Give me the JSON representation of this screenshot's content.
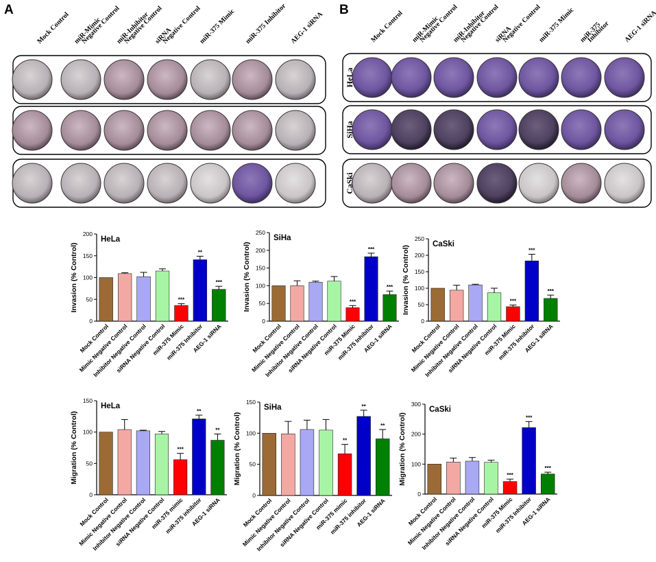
{
  "panel_a": {
    "letter": "A",
    "columns": [
      "Mock Control",
      "miR-Mimic Negative Control",
      "miR-Inhibitor Negative Control",
      "siRNA Negative Control",
      "miR-375 Mimic",
      "miR-375 Inhibitor",
      "AEG-1 siRNA"
    ],
    "rows": [
      "HeLa",
      "SiHa",
      "CaSki"
    ]
  },
  "panel_b": {
    "letter": "B",
    "columns": [
      "Mock Control",
      "miR-Mimic Negative Control",
      "miR-Inhibitor Negative Control",
      "siRNA Negative Control",
      "miR-375 Mimic",
      "miR-375 Inhibitor",
      "AEG-1 siRNA"
    ],
    "rows": [
      "HeLa",
      "SiHa",
      "CaSki"
    ]
  },
  "colors": [
    "#9c6b35",
    "#f4a8a4",
    "#a8a8f5",
    "#a7f5a4",
    "#ff0000",
    "#0000c8",
    "#008000"
  ],
  "chart_data": [
    {
      "type": "bar",
      "title": "HeLa",
      "ylabel": "Invasion (% Control)",
      "ylim": [
        0,
        200
      ],
      "yticks": [
        0,
        50,
        100,
        150,
        200
      ],
      "categories": [
        "Mock Control",
        "Mimic Negative Control",
        "Inhibitor Negative Control",
        "siRNA Negative Control",
        "miR-375 Mimic",
        "miR-375 Inhibitor",
        "AEG-1 siRNA"
      ],
      "values": [
        100,
        109,
        102,
        115,
        36,
        141,
        73
      ],
      "errors": [
        0,
        2,
        10,
        5,
        4,
        8,
        7
      ],
      "significance": [
        "",
        "",
        "",
        "",
        "***",
        "**",
        "***"
      ]
    },
    {
      "type": "bar",
      "title": "SiHa",
      "ylabel": "Invasion (% Control)",
      "ylim": [
        0,
        250
      ],
      "yticks": [
        0,
        50,
        100,
        150,
        200,
        250
      ],
      "categories": [
        "Mock Control",
        "Mimic Negative Control",
        "Inhibitor Negative Control",
        "siRNA Negative Control",
        "miR-375 Mimic",
        "miR-375 Inhibitor",
        "AEG-1 siRNA"
      ],
      "values": [
        100,
        100,
        110,
        113,
        38,
        182,
        75
      ],
      "errors": [
        0,
        14,
        3,
        13,
        6,
        10,
        10
      ],
      "significance": [
        "",
        "",
        "",
        "",
        "***",
        "***",
        "***"
      ]
    },
    {
      "type": "bar",
      "title": "CaSki",
      "ylabel": "Invasion (% Control)",
      "ylim": [
        0,
        250
      ],
      "yticks": [
        0,
        50,
        100,
        150,
        200,
        250
      ],
      "categories": [
        "Mock Control",
        "Mimic Negative Control",
        "Inhibitor Negative Control",
        "siRNA Negative Control",
        "miR-375 Mimic",
        "miR-375 Inhibitor",
        "AEG-1 siRNA"
      ],
      "values": [
        100,
        94,
        110,
        86,
        44,
        183,
        69
      ],
      "errors": [
        0,
        15,
        2,
        14,
        5,
        20,
        10
      ],
      "significance": [
        "",
        "",
        "",
        "",
        "***",
        "***",
        "***"
      ]
    },
    {
      "type": "bar",
      "title": "HeLa",
      "ylabel": "Migration (% Control)",
      "ylim": [
        0,
        150
      ],
      "yticks": [
        0,
        50,
        100,
        150
      ],
      "categories": [
        "Mock Control",
        "Mimic Negative Control",
        "Inhibitor Negative Control",
        "siRNA Negative Control",
        "miR-375 mimic",
        "miR-375 inhibitor",
        "AEG-1 siRNA"
      ],
      "values": [
        100,
        104,
        102,
        97,
        56,
        121,
        87
      ],
      "errors": [
        0,
        16,
        1,
        4,
        10,
        6,
        10
      ],
      "significance": [
        "",
        "",
        "",
        "",
        "***",
        "**",
        "**"
      ]
    },
    {
      "type": "bar",
      "title": "SiHa",
      "ylabel": "Migration (% Control)",
      "ylim": [
        0,
        150
      ],
      "yticks": [
        0,
        50,
        100,
        150
      ],
      "categories": [
        "Mock Control",
        "Mimic Negative Control",
        "Inhibitor Negative Control",
        "siRNA Negative Control",
        "miR-375 mimic",
        "miR-375 inhibitor",
        "AEG-1 siRNA"
      ],
      "values": [
        100,
        99,
        106,
        105,
        67,
        127,
        91
      ],
      "errors": [
        0,
        20,
        15,
        17,
        15,
        10,
        15
      ],
      "significance": [
        "",
        "",
        "",
        "",
        "**",
        "**",
        "**"
      ]
    },
    {
      "type": "bar",
      "title": "CaSki",
      "ylabel": "Migration (% Control)",
      "ylim": [
        0,
        300
      ],
      "yticks": [
        0,
        100,
        200,
        300
      ],
      "categories": [
        "Mock Control",
        "Mimic Negative Control",
        "Inhibitor Negative Control",
        "siRNA Negative Control",
        "miR-375 Mimic",
        "miR-375 Inhibitor",
        "AEG-1 siRNA"
      ],
      "values": [
        100,
        107,
        110,
        106,
        42,
        222,
        67
      ],
      "errors": [
        0,
        13,
        12,
        7,
        8,
        20,
        6
      ],
      "significance": [
        "",
        "",
        "",
        "",
        "***",
        "***",
        "***"
      ]
    }
  ]
}
